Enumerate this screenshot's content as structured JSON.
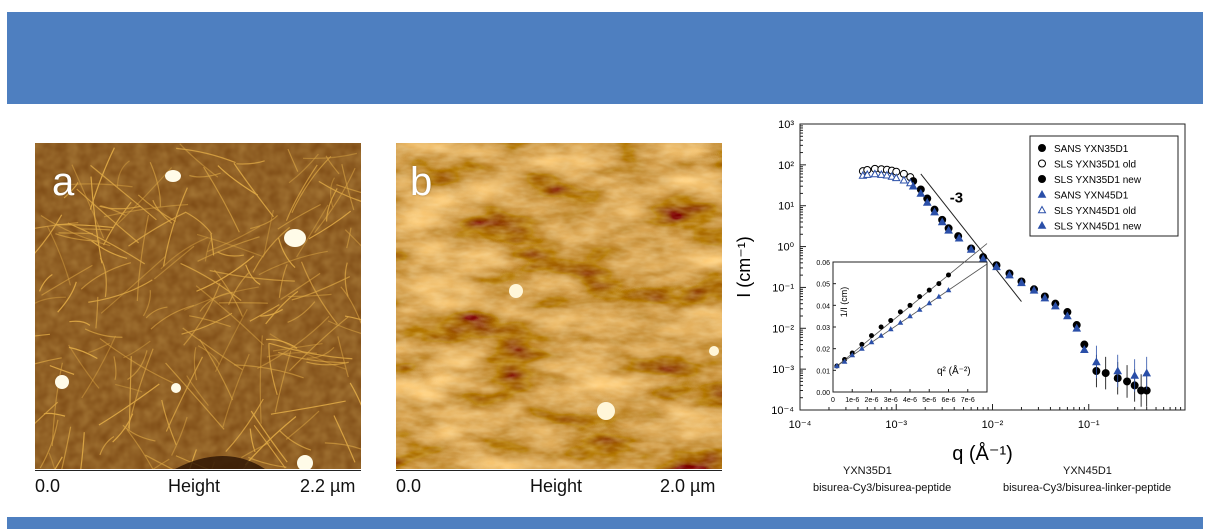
{
  "panel_a": {
    "letter": "a",
    "scale_min": "0.0",
    "scale_title": "Height",
    "scale_max": "2.2 µm"
  },
  "panel_b": {
    "letter": "b",
    "scale_min": "0.0",
    "scale_title": "Height",
    "scale_max": "2.0 µm"
  },
  "captions": {
    "left_code": "YXN35D1",
    "left_desc": "bisurea-Cy3/bisurea-peptide",
    "right_code": "YXN45D1",
    "right_desc": "bisurea-Cy3/bisurea-linker-peptide"
  },
  "colors": {
    "banner": "#4e7fc0",
    "afm_dark": "#3a1c05",
    "afm_light": "#f5d78a",
    "blue_series": "#2a4fa8"
  },
  "chart_data": [
    {
      "type": "scatter",
      "scale": "log-log",
      "xlabel": "q (Å⁻¹)",
      "ylabel": "I (cm⁻¹)",
      "xlim": [
        0.0001,
        1
      ],
      "ylim": [
        0.0001,
        1000
      ],
      "x_ticks": [
        "10⁻⁴",
        "10⁻³",
        "10⁻²",
        "10⁻¹"
      ],
      "y_ticks": [
        "10⁻⁴",
        "10⁻³",
        "10⁻²",
        "10⁻¹",
        "10⁰",
        "10¹",
        "10²",
        "10³"
      ],
      "slope_annotation": "-3",
      "legend_position": "top-right",
      "series": [
        {
          "name": "SANS YXN35D1",
          "marker": "filled-circle",
          "color": "#000000",
          "x": [
            0.0044,
            0.006,
            0.008,
            0.011,
            0.015,
            0.02,
            0.027,
            0.035,
            0.045,
            0.06,
            0.075,
            0.09,
            0.12,
            0.15,
            0.2,
            0.25,
            0.3,
            0.35,
            0.4
          ],
          "y": [
            1.8,
            0.9,
            0.55,
            0.35,
            0.22,
            0.14,
            0.09,
            0.06,
            0.04,
            0.025,
            0.012,
            0.004,
            0.0009,
            0.0008,
            0.0006,
            0.0005,
            0.0004,
            0.0003,
            0.0003
          ]
        },
        {
          "name": "SLS YXN35D1 old",
          "marker": "open-circle",
          "color": "#000000",
          "x": [
            0.00045,
            0.0005,
            0.0006,
            0.0007,
            0.0008,
            0.0009,
            0.001,
            0.0012,
            0.0014
          ],
          "y": [
            70,
            75,
            80,
            78,
            76,
            72,
            68,
            60,
            50
          ]
        },
        {
          "name": "SLS YXN35D1 new",
          "marker": "filled-circle",
          "color": "#000000",
          "x": [
            0.0015,
            0.0018,
            0.0021,
            0.0025,
            0.003,
            0.0035
          ],
          "y": [
            40,
            25,
            15,
            8,
            4.5,
            2.8
          ]
        },
        {
          "name": "SANS YXN45D1",
          "marker": "filled-triangle",
          "color": "#2a4fa8",
          "x": [
            0.0045,
            0.006,
            0.008,
            0.011,
            0.015,
            0.02,
            0.027,
            0.035,
            0.045,
            0.06,
            0.075,
            0.09,
            0.12,
            0.2,
            0.3,
            0.4
          ],
          "y": [
            1.6,
            0.85,
            0.5,
            0.32,
            0.2,
            0.13,
            0.085,
            0.055,
            0.035,
            0.02,
            0.01,
            0.003,
            0.0015,
            0.0009,
            0.0007,
            0.0008
          ]
        },
        {
          "name": "SLS YXN45D1 old",
          "marker": "open-triangle",
          "color": "#2a4fa8",
          "x": [
            0.00045,
            0.0005,
            0.0006,
            0.0007,
            0.0008,
            0.0009,
            0.001,
            0.0012,
            0.0014
          ],
          "y": [
            55,
            58,
            60,
            58,
            56,
            52,
            48,
            42,
            36
          ]
        },
        {
          "name": "SLS YXN45D1 new",
          "marker": "filled-triangle",
          "color": "#2a4fa8",
          "x": [
            0.0015,
            0.0018,
            0.0021,
            0.0025,
            0.003,
            0.0035
          ],
          "y": [
            30,
            20,
            12,
            7,
            4,
            2.5
          ]
        }
      ]
    },
    {
      "type": "scatter",
      "role": "inset",
      "xlabel": "q² (Å⁻²)",
      "ylabel": "1/I (cm)",
      "xlim": [
        0,
        8e-06
      ],
      "ylim": [
        0,
        0.06
      ],
      "x_tick_labels": [
        "0",
        "1e-6",
        "2e-6",
        "3e-6",
        "4e-6",
        "5e-6",
        "6e-6",
        "7e-6"
      ],
      "y_tick_labels": [
        "0.00",
        "0.01",
        "0.02",
        "0.03",
        "0.04",
        "0.05",
        "0.06"
      ],
      "series": [
        {
          "marker": "filled-circle",
          "color": "#000000",
          "x": [
            2e-07,
            6e-07,
            1e-06,
            1.5e-06,
            2e-06,
            2.5e-06,
            3e-06,
            3.5e-06,
            4e-06,
            4.5e-06,
            5e-06,
            5.5e-06,
            6e-06
          ],
          "y": [
            0.012,
            0.015,
            0.018,
            0.022,
            0.026,
            0.03,
            0.033,
            0.037,
            0.04,
            0.044,
            0.047,
            0.05,
            0.054
          ]
        },
        {
          "marker": "filled-triangle",
          "color": "#2a4fa8",
          "x": [
            2e-07,
            6e-07,
            1e-06,
            1.5e-06,
            2e-06,
            2.5e-06,
            3e-06,
            3.5e-06,
            4e-06,
            4.5e-06,
            5e-06,
            5.5e-06,
            6e-06
          ],
          "y": [
            0.012,
            0.014,
            0.017,
            0.02,
            0.023,
            0.026,
            0.029,
            0.032,
            0.035,
            0.038,
            0.041,
            0.044,
            0.047
          ]
        }
      ]
    }
  ]
}
